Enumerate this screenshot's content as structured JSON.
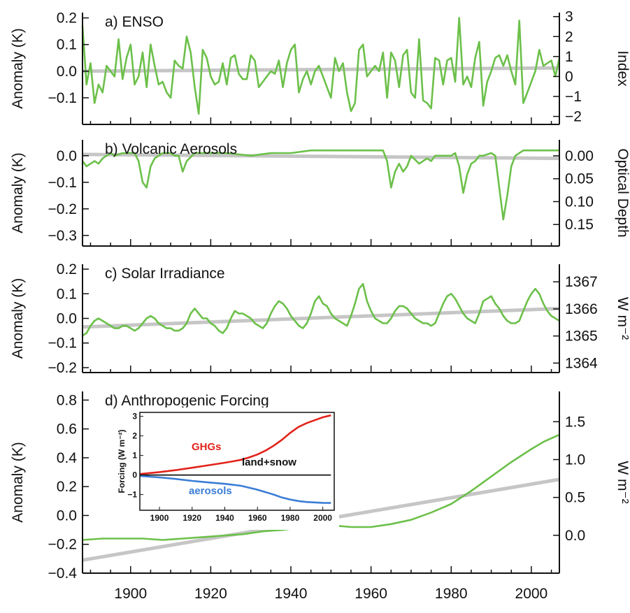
{
  "chart_data": [
    {
      "type": "line",
      "title": "a) ENSO",
      "ylabel": "Anomaly (K)",
      "y2label": "Index",
      "xlim": [
        1888,
        2007
      ],
      "ylim": [
        -0.2,
        0.22
      ],
      "y2lim": [
        -2.4,
        3.2
      ],
      "yticks": [
        "0.2",
        "0.1",
        "0.0",
        "−0.1"
      ],
      "y2ticks": [
        "3",
        "2",
        "1",
        "0",
        "−1",
        "−2"
      ],
      "series": [
        {
          "color": "#6cc04a",
          "x": [
            1888,
            1889,
            1890,
            1891,
            1892,
            1893,
            1894,
            1895,
            1896,
            1897,
            1898,
            1899,
            1900,
            1901,
            1902,
            1903,
            1904,
            1905,
            1906,
            1907,
            1908,
            1909,
            1910,
            1911,
            1912,
            1913,
            1914,
            1915,
            1916,
            1917,
            1918,
            1919,
            1920,
            1921,
            1922,
            1923,
            1924,
            1925,
            1926,
            1927,
            1928,
            1929,
            1930,
            1931,
            1932,
            1933,
            1934,
            1935,
            1936,
            1937,
            1938,
            1939,
            1940,
            1941,
            1942,
            1943,
            1944,
            1945,
            1946,
            1947,
            1948,
            1949,
            1950,
            1951,
            1952,
            1953,
            1954,
            1955,
            1956,
            1957,
            1958,
            1959,
            1960,
            1961,
            1962,
            1963,
            1964,
            1965,
            1966,
            1967,
            1968,
            1969,
            1970,
            1971,
            1972,
            1973,
            1974,
            1975,
            1976,
            1977,
            1978,
            1979,
            1980,
            1981,
            1982,
            1983,
            1984,
            1985,
            1986,
            1987,
            1988,
            1989,
            1990,
            1991,
            1992,
            1993,
            1994,
            1995,
            1996,
            1997,
            1998,
            1999,
            2000,
            2001,
            2002,
            2003,
            2004,
            2005,
            2006,
            2007
          ],
          "y": [
            0.17,
            -0.05,
            0.03,
            -0.12,
            -0.05,
            -0.08,
            0.02,
            0.0,
            -0.02,
            0.12,
            -0.03,
            0.05,
            0.1,
            -0.05,
            -0.02,
            0.07,
            -0.06,
            0.1,
            0.02,
            -0.05,
            -0.04,
            -0.08,
            -0.1,
            0.04,
            0.02,
            0.01,
            0.13,
            0.07,
            -0.06,
            -0.16,
            0.08,
            0.05,
            -0.02,
            -0.05,
            -0.04,
            0.03,
            -0.05,
            0.05,
            0.06,
            -0.01,
            -0.03,
            -0.03,
            0.06,
            0.04,
            -0.06,
            -0.04,
            -0.02,
            0.0,
            -0.01,
            0.04,
            -0.06,
            0.03,
            0.08,
            0.1,
            -0.08,
            -0.03,
            0.0,
            -0.05,
            0.0,
            0.02,
            -0.02,
            -0.06,
            -0.1,
            0.05,
            0.0,
            0.03,
            -0.08,
            -0.15,
            -0.12,
            0.08,
            0.1,
            -0.02,
            0.0,
            0.02,
            0.0,
            0.07,
            -0.1,
            0.07,
            0.04,
            -0.06,
            0.06,
            0.08,
            -0.08,
            -0.1,
            0.12,
            -0.11,
            -0.12,
            -0.14,
            0.05,
            0.04,
            -0.05,
            0.04,
            0.05,
            -0.04,
            0.2,
            -0.05,
            -0.02,
            -0.06,
            0.05,
            0.11,
            -0.13,
            -0.04,
            0.0,
            0.05,
            0.06,
            0.02,
            0.06,
            0.0,
            -0.05,
            0.19,
            -0.12,
            -0.08,
            -0.04,
            0.0,
            0.08,
            0.02,
            0.03,
            0.04,
            -0.02,
            0.05
          ]
        },
        {
          "color": "#c6c6c6",
          "x": [
            1888,
            2007
          ],
          "y": [
            0.0,
            0.012
          ]
        }
      ]
    },
    {
      "type": "line",
      "title": "b) Volcanic Aerosols",
      "ylabel": "Anomaly (K)",
      "y2label": "Optical Depth",
      "xlim": [
        1888,
        2007
      ],
      "ylim": [
        -0.34,
        0.06
      ],
      "y2lim": [
        0.197,
        -0.035
      ],
      "yticks": [
        "0.0",
        "−0.1",
        "−0.2",
        "−0.3"
      ],
      "y2ticks": [
        "0.00",
        "0.05",
        "0.10",
        "0.15"
      ],
      "series": [
        {
          "color": "#6cc04a",
          "x": [
            1888,
            1889,
            1890,
            1891,
            1892,
            1893,
            1894,
            1895,
            1896,
            1898,
            1900,
            1901,
            1902,
            1903,
            1904,
            1905,
            1906,
            1907,
            1908,
            1910,
            1911,
            1912,
            1913,
            1914,
            1916,
            1920,
            1924,
            1930,
            1935,
            1940,
            1945,
            1950,
            1955,
            1960,
            1962,
            1963,
            1964,
            1965,
            1966,
            1967,
            1968,
            1969,
            1970,
            1972,
            1974,
            1975,
            1976,
            1978,
            1980,
            1981,
            1982,
            1983,
            1984,
            1985,
            1986,
            1987,
            1988,
            1990,
            1991,
            1992,
            1993,
            1994,
            1995,
            1996,
            1998,
            2000,
            2003,
            2007
          ],
          "y": [
            -0.02,
            -0.04,
            -0.03,
            -0.02,
            -0.03,
            -0.01,
            0.0,
            0.01,
            0.0,
            0.01,
            0.01,
            0.01,
            -0.02,
            -0.1,
            -0.12,
            -0.04,
            -0.01,
            0.0,
            0.01,
            0.01,
            0.0,
            0.0,
            -0.06,
            -0.02,
            0.01,
            0.01,
            0.01,
            0.0,
            0.01,
            0.01,
            0.02,
            0.02,
            0.02,
            0.02,
            0.02,
            0.02,
            -0.02,
            -0.12,
            -0.06,
            -0.03,
            -0.06,
            -0.04,
            0.0,
            -0.03,
            -0.01,
            -0.02,
            0.0,
            0.0,
            0.0,
            0.01,
            -0.04,
            -0.14,
            -0.07,
            -0.03,
            -0.02,
            0.0,
            0.0,
            0.01,
            0.0,
            -0.12,
            -0.24,
            -0.15,
            -0.04,
            0.0,
            0.02,
            0.02,
            0.02,
            0.02
          ]
        },
        {
          "color": "#c6c6c6",
          "x": [
            1888,
            2007
          ],
          "y": [
            0.005,
            -0.01
          ]
        }
      ]
    },
    {
      "type": "line",
      "title": "c) Solar Irradiance",
      "ylabel": "Anomaly (K)",
      "y2label": "W m⁻²",
      "xlim": [
        1888,
        2007
      ],
      "ylim": [
        -0.22,
        0.22
      ],
      "y2lim": [
        1363.65,
        1367.65
      ],
      "yticks": [
        "0.2",
        "0.1",
        "0.0",
        "−0.1",
        "−0.2"
      ],
      "y2ticks": [
        "1367",
        "1366",
        "1365",
        "1364"
      ],
      "series": [
        {
          "color": "#6cc04a",
          "x": [
            1888,
            1889,
            1890,
            1891,
            1892,
            1893,
            1894,
            1895,
            1896,
            1897,
            1898,
            1899,
            1900,
            1901,
            1902,
            1903,
            1904,
            1905,
            1906,
            1907,
            1908,
            1909,
            1910,
            1911,
            1912,
            1913,
            1914,
            1915,
            1916,
            1917,
            1918,
            1919,
            1920,
            1921,
            1922,
            1923,
            1924,
            1925,
            1926,
            1927,
            1928,
            1929,
            1930,
            1931,
            1932,
            1933,
            1934,
            1935,
            1936,
            1937,
            1938,
            1939,
            1940,
            1941,
            1942,
            1943,
            1944,
            1945,
            1946,
            1947,
            1948,
            1949,
            1950,
            1951,
            1952,
            1953,
            1954,
            1955,
            1956,
            1957,
            1958,
            1959,
            1960,
            1961,
            1962,
            1963,
            1964,
            1965,
            1966,
            1967,
            1968,
            1969,
            1970,
            1971,
            1972,
            1973,
            1974,
            1975,
            1976,
            1977,
            1978,
            1979,
            1980,
            1981,
            1982,
            1983,
            1984,
            1985,
            1986,
            1987,
            1988,
            1989,
            1990,
            1991,
            1992,
            1993,
            1994,
            1995,
            1996,
            1997,
            1998,
            1999,
            2000,
            2001,
            2002,
            2003,
            2004,
            2005,
            2006,
            2007
          ],
          "y": [
            -0.07,
            -0.06,
            -0.03,
            -0.01,
            0.0,
            -0.01,
            -0.02,
            -0.03,
            -0.04,
            -0.04,
            -0.03,
            -0.03,
            -0.04,
            -0.05,
            -0.04,
            -0.02,
            0.0,
            0.01,
            0.0,
            -0.02,
            -0.03,
            -0.04,
            -0.04,
            -0.05,
            -0.05,
            -0.04,
            -0.02,
            0.02,
            0.04,
            0.02,
            0.0,
            0.0,
            -0.02,
            -0.03,
            -0.05,
            -0.06,
            -0.04,
            0.0,
            0.03,
            0.02,
            0.02,
            0.01,
            0.0,
            -0.02,
            -0.03,
            -0.04,
            -0.02,
            0.02,
            0.05,
            0.07,
            0.06,
            0.04,
            0.01,
            -0.01,
            -0.03,
            -0.04,
            -0.02,
            0.02,
            0.07,
            0.09,
            0.06,
            0.05,
            0.02,
            0.0,
            -0.01,
            -0.02,
            -0.03,
            0.01,
            0.06,
            0.12,
            0.14,
            0.07,
            0.03,
            0.0,
            -0.01,
            -0.02,
            -0.02,
            0.0,
            0.03,
            0.05,
            0.05,
            0.04,
            0.02,
            0.0,
            -0.01,
            -0.02,
            -0.02,
            -0.03,
            -0.02,
            0.02,
            0.06,
            0.09,
            0.1,
            0.08,
            0.05,
            0.02,
            0.0,
            -0.01,
            -0.02,
            0.02,
            0.07,
            0.08,
            0.09,
            0.06,
            0.04,
            0.01,
            -0.01,
            -0.02,
            -0.02,
            -0.01,
            0.03,
            0.07,
            0.1,
            0.12,
            0.1,
            0.06,
            0.03,
            0.01,
            0.0,
            -0.01
          ]
        },
        {
          "color": "#c6c6c6",
          "x": [
            1888,
            2007
          ],
          "y": [
            -0.035,
            0.04
          ]
        }
      ]
    },
    {
      "type": "line",
      "title": "d) Anthropogenic Forcing",
      "ylabel": "Anomaly (K)",
      "y2label": "W m⁻²",
      "xlim": [
        1888,
        2007
      ],
      "ylim": [
        -0.4,
        0.86
      ],
      "y2lim": [
        -0.5,
        1.9
      ],
      "yticks": [
        "0.8",
        "0.6",
        "0.4",
        "0.2",
        "0.0",
        "−0.2",
        "−0.4"
      ],
      "y2ticks": [
        "1.5",
        "1.0",
        "0.5",
        "0.0"
      ],
      "xticks": [
        "1900",
        "1920",
        "1940",
        "1960",
        "1980",
        "2000"
      ],
      "series": [
        {
          "color": "#6cc04a",
          "x": [
            1888,
            1893,
            1898,
            1903,
            1908,
            1913,
            1918,
            1923,
            1928,
            1933,
            1938,
            1943,
            1948,
            1951,
            1955,
            1960,
            1965,
            1970,
            1975,
            1980,
            1985,
            1990,
            1995,
            2000,
            2003,
            2007
          ],
          "y": [
            -0.17,
            -0.16,
            -0.16,
            -0.16,
            -0.17,
            -0.16,
            -0.15,
            -0.14,
            -0.13,
            -0.11,
            -0.1,
            -0.08,
            -0.06,
            -0.07,
            -0.08,
            -0.08,
            -0.06,
            -0.03,
            0.02,
            0.08,
            0.17,
            0.27,
            0.37,
            0.46,
            0.51,
            0.56
          ]
        },
        {
          "color": "#c6c6c6",
          "x": [
            1888,
            2007
          ],
          "y": [
            -0.31,
            0.25
          ]
        }
      ],
      "inset": {
        "ylabel": "Forcing (W m⁻²)",
        "xlim": [
          1888,
          2007
        ],
        "ylim": [
          -1.8,
          3.2
        ],
        "xticks": [
          "1900",
          "1920",
          "1940",
          "1960",
          "1980",
          "2000"
        ],
        "yticks": [
          "3",
          "2",
          "1",
          "0",
          "−1"
        ],
        "series": [
          {
            "name": "GHGs",
            "color": "#e2231a",
            "x": [
              1888,
              1900,
              1910,
              1920,
              1930,
              1940,
              1945,
              1950,
              1955,
              1960,
              1965,
              1970,
              1975,
              1980,
              1985,
              1990,
              1995,
              2000,
              2005
            ],
            "y": [
              0.05,
              0.15,
              0.25,
              0.37,
              0.5,
              0.63,
              0.7,
              0.78,
              0.9,
              1.05,
              1.25,
              1.5,
              1.8,
              2.15,
              2.45,
              2.65,
              2.8,
              2.95,
              3.05
            ]
          },
          {
            "name": "land+snow",
            "color": "#111111",
            "x": [
              1888,
              2005
            ],
            "y": [
              0.0,
              0.0
            ]
          },
          {
            "name": "aerosols",
            "color": "#3a7dd6",
            "x": [
              1888,
              1900,
              1910,
              1920,
              1930,
              1940,
              1950,
              1960,
              1970,
              1975,
              1980,
              1985,
              1990,
              1995,
              2000,
              2005
            ],
            "y": [
              -0.05,
              -0.12,
              -0.2,
              -0.3,
              -0.38,
              -0.45,
              -0.55,
              -0.75,
              -1.0,
              -1.15,
              -1.25,
              -1.33,
              -1.38,
              -1.4,
              -1.42,
              -1.43
            ]
          }
        ]
      }
    }
  ]
}
